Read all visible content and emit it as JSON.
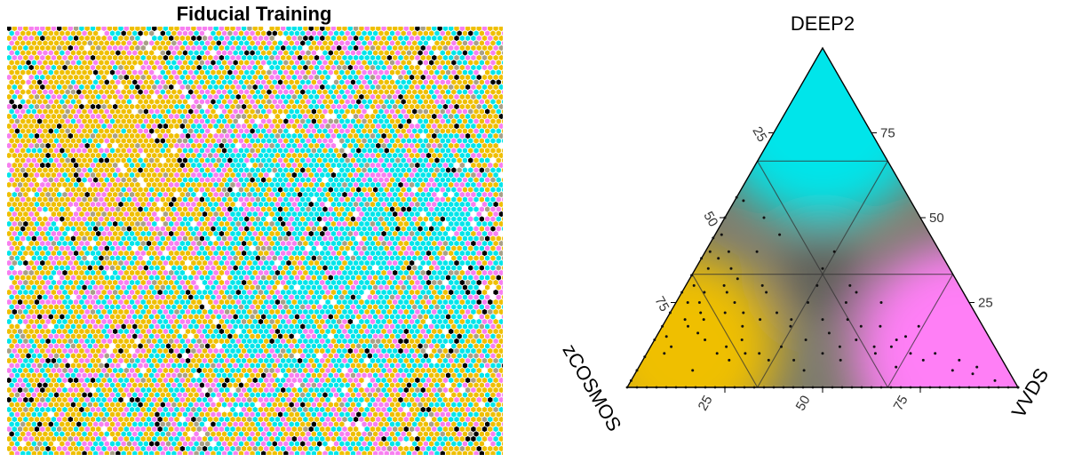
{
  "chart_data": [
    {
      "type": "heatmap",
      "subtype": "hexagonal self-organizing map",
      "title": "Fiducial Training",
      "grid": false,
      "cell_colors": {
        "zCOSMOS": "#efbf00",
        "VVDS": "#f77ff0",
        "DEEP2": "#00e5ea",
        "empty": "#ffffff",
        "mixed": "#000000",
        "blend": "#a8a088"
      }
    },
    {
      "type": "scatter",
      "subtype": "ternary",
      "vertices": [
        "DEEP2",
        "zCOSMOS",
        "VVDS"
      ],
      "vertex_colors": {
        "DEEP2": "#00e5ea",
        "zCOSMOS": "#efbf00",
        "VVDS": "#ff7ff6"
      },
      "ticks": [
        "25",
        "50",
        "75"
      ],
      "axis_range": [
        0,
        100
      ],
      "grid": true,
      "series": [
        {
          "x": [
            0,
            0,
            0,
            0,
            0,
            0,
            0,
            0,
            0,
            0,
            0,
            0,
            3,
            4,
            2,
            5,
            6,
            3,
            8,
            5,
            5,
            3,
            10,
            7,
            6,
            8,
            14,
            10,
            12,
            8,
            15,
            18,
            20,
            14,
            16,
            22,
            20,
            25,
            24,
            18,
            30,
            26,
            28,
            32,
            24,
            12,
            15,
            30,
            22,
            35,
            40,
            38,
            28,
            20,
            45,
            42,
            50,
            35,
            40,
            30,
            55,
            48,
            60,
            52,
            58,
            45,
            62,
            55,
            50,
            65,
            58,
            62,
            70,
            68,
            55,
            60,
            72,
            50,
            75,
            65,
            45,
            78,
            70,
            82,
            85,
            75,
            88,
            80,
            90,
            70,
            100,
            95,
            92
          ],
          "y": [
            2,
            5,
            9,
            14,
            18,
            22,
            28,
            33,
            38,
            44,
            50,
            56,
            30,
            25,
            40,
            35,
            20,
            15,
            28,
            55,
            10,
            45,
            22,
            38,
            12,
            18,
            30,
            40,
            16,
            25,
            14,
            22,
            10,
            35,
            28,
            12,
            25,
            18,
            8,
            32,
            20,
            14,
            30,
            10,
            22,
            20,
            5,
            28,
            40,
            8,
            18,
            12,
            10,
            50,
            14,
            8,
            10,
            22,
            20,
            45,
            12,
            30,
            14,
            16,
            25,
            25,
            18,
            8,
            35,
            10,
            20,
            28,
            12,
            18,
            40,
            30,
            14,
            20,
            10,
            12,
            5,
            8,
            6,
            10,
            5,
            15,
            8,
            18,
            4,
            25,
            0,
            2,
            6
          ]
        }
      ]
    }
  ]
}
